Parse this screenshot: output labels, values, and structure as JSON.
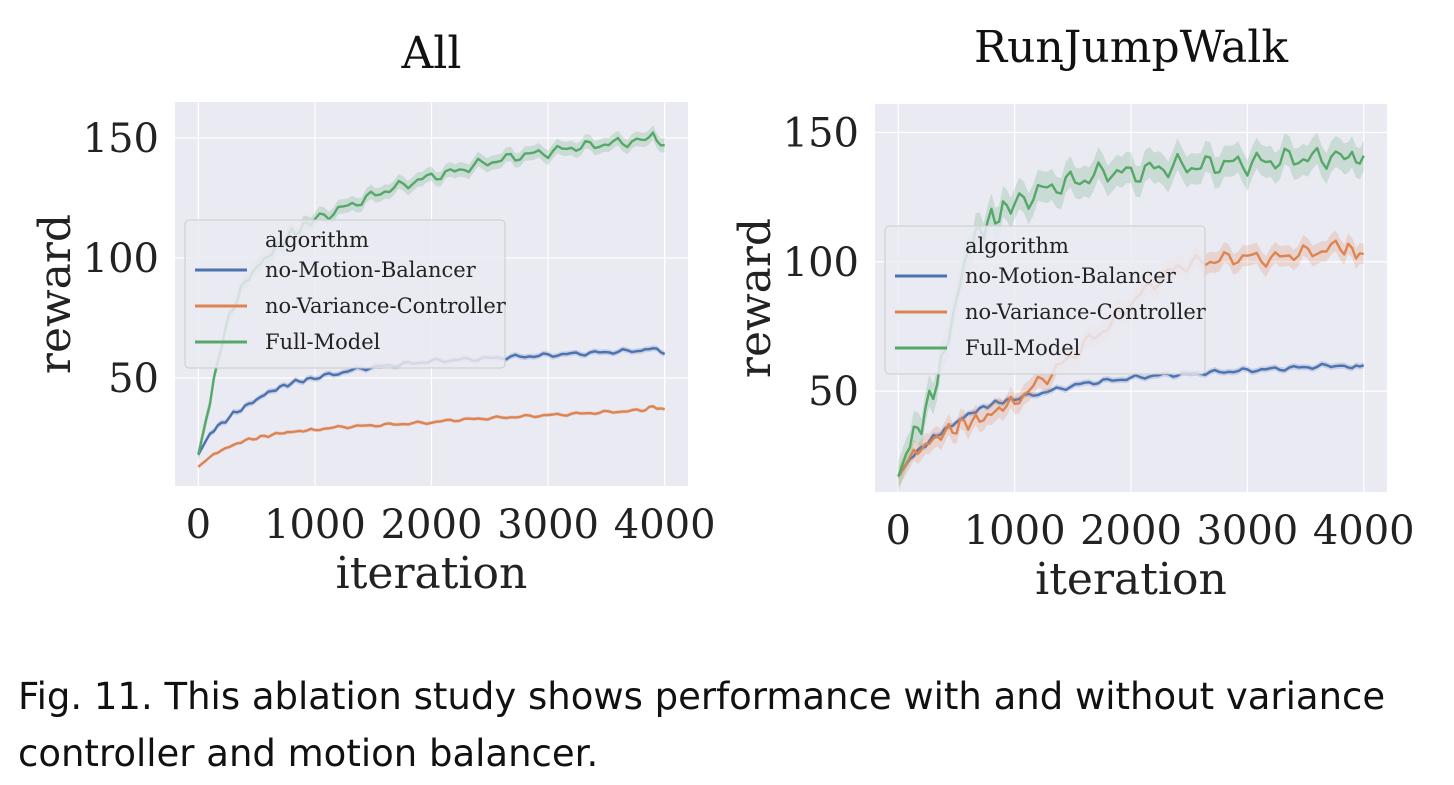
{
  "caption": "Fig. 11. This ablation study shows performance with and without variance controller and motion balancer.",
  "colors": {
    "plot_background": "#eaeaf2",
    "grid": "#ffffff",
    "no_motion_balancer": "#4c72b0",
    "no_variance_controller": "#dd8452",
    "full_model": "#55a868"
  },
  "chart_data": [
    {
      "type": "line",
      "title": "All",
      "xlabel": "iteration",
      "ylabel": "reward",
      "xlim": [
        -200,
        4200
      ],
      "ylim": [
        5,
        165
      ],
      "xticks": [
        0,
        1000,
        2000,
        3000,
        4000
      ],
      "yticks": [
        50,
        100,
        150
      ],
      "grid": true,
      "legend": {
        "title": "algorithm",
        "placement": "center-left"
      },
      "x": [
        0,
        100,
        200,
        300,
        400,
        500,
        600,
        700,
        800,
        900,
        1000,
        1200,
        1400,
        1600,
        1800,
        2000,
        2200,
        2400,
        2600,
        2800,
        3000,
        3200,
        3400,
        3600,
        3800,
        3900,
        4000
      ],
      "series": [
        {
          "name": "no-Motion-Balancer",
          "band": 1.2,
          "values": [
            18,
            27,
            31,
            35,
            38,
            41,
            44,
            46,
            48,
            49,
            50,
            52,
            54,
            55,
            56,
            57,
            57.5,
            58,
            58.5,
            59,
            59.5,
            60,
            60.5,
            61,
            61.5,
            62.5,
            60
          ]
        },
        {
          "name": "no-Variance-Controller",
          "band": 0.8,
          "values": [
            13,
            17,
            20,
            22,
            24,
            25,
            26,
            27,
            27.5,
            28,
            28.5,
            29.5,
            30,
            30.5,
            31,
            31.5,
            32.5,
            33,
            33.5,
            34,
            34.5,
            35,
            35.5,
            36,
            36.5,
            38,
            37
          ]
        },
        {
          "name": "Full-Model",
          "band": 3,
          "values": [
            18,
            40,
            65,
            80,
            90,
            96,
            101,
            106,
            110,
            113,
            116,
            120,
            124,
            128,
            131,
            134,
            136,
            139,
            141,
            143,
            144,
            146,
            147,
            148,
            149,
            151,
            147
          ]
        }
      ]
    },
    {
      "type": "line",
      "title": "RunJumpWalk",
      "xlabel": "iteration",
      "ylabel": "reward",
      "xlim": [
        -200,
        4200
      ],
      "ylim": [
        11,
        161
      ],
      "xticks": [
        0,
        1000,
        2000,
        3000,
        4000
      ],
      "yticks": [
        50,
        100,
        150
      ],
      "grid": true,
      "legend": {
        "title": "algorithm",
        "placement": "center-left"
      },
      "x": [
        0,
        100,
        200,
        300,
        400,
        500,
        600,
        700,
        800,
        900,
        1000,
        1200,
        1400,
        1600,
        1800,
        2000,
        2200,
        2400,
        2600,
        2800,
        3000,
        3200,
        3400,
        3600,
        3800,
        3900,
        4000
      ],
      "series": [
        {
          "name": "no-Motion-Balancer",
          "band": 1.2,
          "values": [
            17,
            24,
            28,
            32,
            35,
            38,
            41,
            43,
            45,
            46,
            47,
            49,
            51,
            53,
            54,
            55,
            56,
            56.5,
            57,
            57.5,
            58,
            58.5,
            59,
            59.5,
            60,
            59,
            60
          ]
        },
        {
          "name": "no-Variance-Controller",
          "band": 4,
          "values": [
            17,
            24,
            28,
            31,
            34,
            36,
            38,
            39,
            41,
            44,
            46,
            53,
            60,
            68,
            75,
            84,
            92,
            98,
            100,
            101,
            102,
            101,
            103,
            104,
            106,
            104,
            103
          ]
        },
        {
          "name": "Full-Model",
          "band": 6,
          "values": [
            17,
            30,
            38,
            50,
            65,
            85,
            105,
            112,
            116,
            120,
            122,
            127,
            130,
            132,
            135,
            134,
            136,
            137,
            137,
            138,
            138,
            139,
            140,
            140,
            141,
            140,
            141
          ]
        }
      ]
    }
  ]
}
